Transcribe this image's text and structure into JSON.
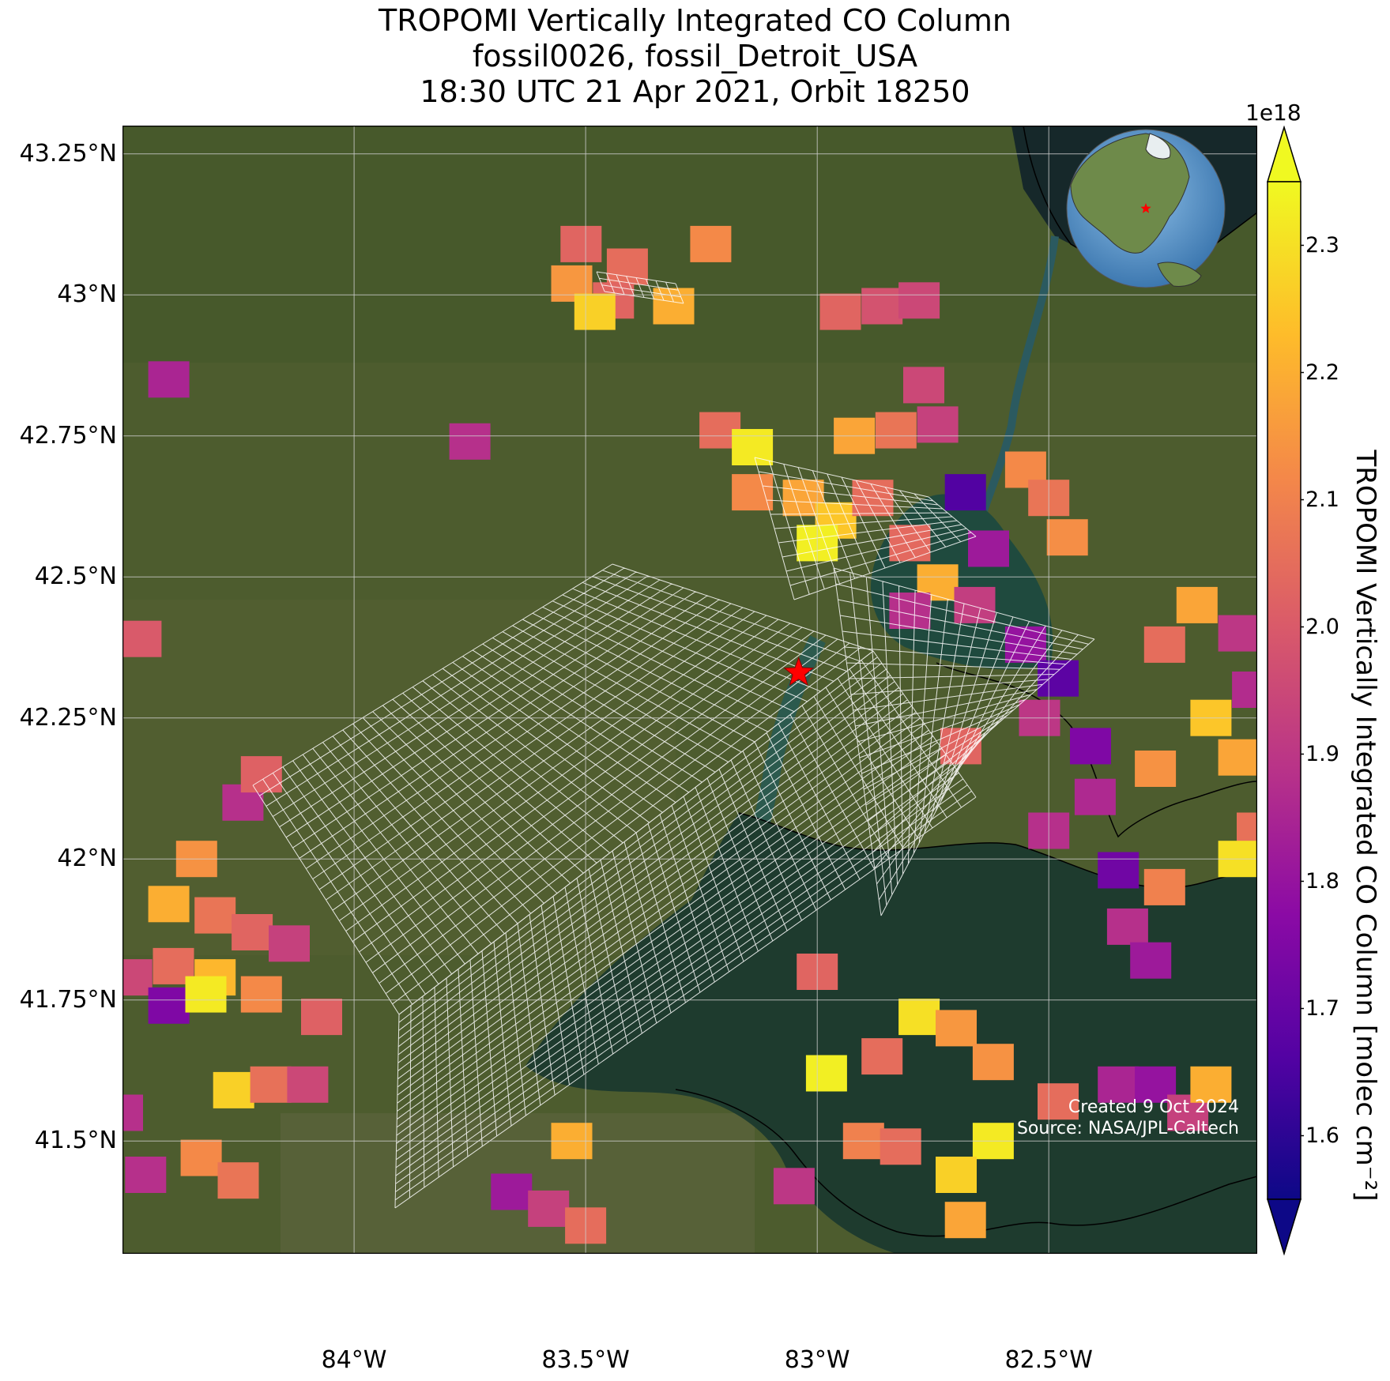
{
  "title": {
    "line1": "TROPOMI Vertically Integrated CO Column",
    "line2": "fossil0026, fossil_Detroit_USA",
    "line3": "18:30 UTC 21 Apr 2021, Orbit 18250"
  },
  "axes": {
    "lon_range": [
      -84.5,
      -82.05
    ],
    "lat_range": [
      41.3,
      43.3
    ],
    "x_ticks": [
      {
        "value": -84.0,
        "label": "84°W"
      },
      {
        "value": -83.5,
        "label": "83.5°W"
      },
      {
        "value": -83.0,
        "label": "83°W"
      },
      {
        "value": -82.5,
        "label": "82.5°W"
      }
    ],
    "y_ticks": [
      {
        "value": 43.25,
        "label": "43.25°N"
      },
      {
        "value": 43.0,
        "label": "43°N"
      },
      {
        "value": 42.75,
        "label": "42.75°N"
      },
      {
        "value": 42.5,
        "label": "42.5°N"
      },
      {
        "value": 42.25,
        "label": "42.25°N"
      },
      {
        "value": 42.0,
        "label": "42°N"
      },
      {
        "value": 41.75,
        "label": "41.75°N"
      },
      {
        "value": 41.5,
        "label": "41.5°N"
      }
    ],
    "grid": true
  },
  "colorbar": {
    "label": "TROPOMI Vertically Integrated CO Column [molec cm⁻²]",
    "exponent_label": "1e18",
    "range": [
      1.55,
      2.35
    ],
    "ticks": [
      "1.6",
      "1.7",
      "1.8",
      "1.9",
      "2.0",
      "2.1",
      "2.2",
      "2.3"
    ],
    "colormap": "plasma",
    "extend": "both"
  },
  "site_marker": {
    "lon": -83.04,
    "lat": 42.33,
    "color": "#ff0000",
    "symbol": "star-icon"
  },
  "inset_globe": {
    "marker_color": "#ff0000"
  },
  "credits": {
    "created": "Created 9 Oct 2024",
    "source": "Source: NASA/JPL-Caltech"
  },
  "colors": {
    "land": "#4a5a2c",
    "water": "#1e3d34",
    "grid": "#d0d0d0",
    "overlay_grid": "#ffffff"
  },
  "chart_data": {
    "type": "heatmap",
    "title": "TROPOMI Vertically Integrated CO Column",
    "xlabel": "",
    "ylabel": "",
    "value_units": "1e18 molec cm-2",
    "cells": [
      {
        "lon": -83.51,
        "lat": 43.09,
        "v": 2.03
      },
      {
        "lon": -83.41,
        "lat": 43.05,
        "v": 2.05
      },
      {
        "lon": -83.23,
        "lat": 43.09,
        "v": 2.12
      },
      {
        "lon": -83.53,
        "lat": 43.02,
        "v": 2.15
      },
      {
        "lon": -83.44,
        "lat": 42.99,
        "v": 2.03
      },
      {
        "lon": -83.31,
        "lat": 42.98,
        "v": 2.2
      },
      {
        "lon": -83.48,
        "lat": 42.97,
        "v": 2.27
      },
      {
        "lon": -82.95,
        "lat": 42.97,
        "v": 2.03
      },
      {
        "lon": -82.86,
        "lat": 42.98,
        "v": 1.98
      },
      {
        "lon": -82.78,
        "lat": 42.99,
        "v": 1.95
      },
      {
        "lon": -84.4,
        "lat": 42.85,
        "v": 1.85
      },
      {
        "lon": -83.75,
        "lat": 42.74,
        "v": 1.88
      },
      {
        "lon": -83.21,
        "lat": 42.76,
        "v": 2.05
      },
      {
        "lon": -83.14,
        "lat": 42.73,
        "v": 2.32
      },
      {
        "lon": -83.14,
        "lat": 42.65,
        "v": 2.12
      },
      {
        "lon": -82.92,
        "lat": 42.75,
        "v": 2.18
      },
      {
        "lon": -82.83,
        "lat": 42.76,
        "v": 2.07
      },
      {
        "lon": -82.74,
        "lat": 42.77,
        "v": 1.93
      },
      {
        "lon": -82.77,
        "lat": 42.84,
        "v": 1.95
      },
      {
        "lon": -83.03,
        "lat": 42.64,
        "v": 2.18
      },
      {
        "lon": -82.96,
        "lat": 42.6,
        "v": 2.25
      },
      {
        "lon": -83.0,
        "lat": 42.56,
        "v": 2.33
      },
      {
        "lon": -82.88,
        "lat": 42.64,
        "v": 2.05
      },
      {
        "lon": -82.68,
        "lat": 42.65,
        "v": 1.66
      },
      {
        "lon": -82.55,
        "lat": 42.69,
        "v": 2.12
      },
      {
        "lon": -82.5,
        "lat": 42.64,
        "v": 2.07
      },
      {
        "lon": -82.46,
        "lat": 42.57,
        "v": 2.13
      },
      {
        "lon": -82.8,
        "lat": 42.56,
        "v": 2.04
      },
      {
        "lon": -82.63,
        "lat": 42.55,
        "v": 1.82
      },
      {
        "lon": -82.74,
        "lat": 42.49,
        "v": 2.2
      },
      {
        "lon": -82.8,
        "lat": 42.44,
        "v": 1.88
      },
      {
        "lon": -82.66,
        "lat": 42.45,
        "v": 1.92
      },
      {
        "lon": -82.55,
        "lat": 42.38,
        "v": 1.8
      },
      {
        "lon": -82.48,
        "lat": 42.32,
        "v": 1.68
      },
      {
        "lon": -82.52,
        "lat": 42.25,
        "v": 1.9
      },
      {
        "lon": -82.41,
        "lat": 42.2,
        "v": 1.75
      },
      {
        "lon": -82.69,
        "lat": 42.2,
        "v": 2.03
      },
      {
        "lon": -82.4,
        "lat": 42.11,
        "v": 1.86
      },
      {
        "lon": -82.5,
        "lat": 42.05,
        "v": 1.88
      },
      {
        "lon": -82.35,
        "lat": 41.98,
        "v": 1.72
      },
      {
        "lon": -82.25,
        "lat": 41.95,
        "v": 2.1
      },
      {
        "lon": -82.33,
        "lat": 41.88,
        "v": 1.88
      },
      {
        "lon": -82.28,
        "lat": 41.82,
        "v": 1.82
      },
      {
        "lon": -82.25,
        "lat": 42.38,
        "v": 2.05
      },
      {
        "lon": -82.18,
        "lat": 42.45,
        "v": 2.18
      },
      {
        "lon": -82.09,
        "lat": 42.4,
        "v": 1.9
      },
      {
        "lon": -82.15,
        "lat": 42.25,
        "v": 2.25
      },
      {
        "lon": -82.06,
        "lat": 42.3,
        "v": 1.87
      },
      {
        "lon": -82.09,
        "lat": 42.18,
        "v": 2.18
      },
      {
        "lon": -82.27,
        "lat": 42.16,
        "v": 2.14
      },
      {
        "lon": -82.05,
        "lat": 42.05,
        "v": 2.06
      },
      {
        "lon": -82.09,
        "lat": 42.0,
        "v": 2.3
      },
      {
        "lon": -84.46,
        "lat": 42.39,
        "v": 2.0
      },
      {
        "lon": -84.24,
        "lat": 42.1,
        "v": 1.88
      },
      {
        "lon": -84.2,
        "lat": 42.15,
        "v": 2.02
      },
      {
        "lon": -84.34,
        "lat": 42.0,
        "v": 2.14
      },
      {
        "lon": -84.4,
        "lat": 41.92,
        "v": 2.2
      },
      {
        "lon": -84.3,
        "lat": 41.9,
        "v": 2.07
      },
      {
        "lon": -84.22,
        "lat": 41.87,
        "v": 2.03
      },
      {
        "lon": -84.14,
        "lat": 41.85,
        "v": 1.93
      },
      {
        "lon": -84.39,
        "lat": 41.81,
        "v": 2.05
      },
      {
        "lon": -84.3,
        "lat": 41.79,
        "v": 2.22
      },
      {
        "lon": -84.48,
        "lat": 41.79,
        "v": 1.95
      },
      {
        "lon": -84.4,
        "lat": 41.74,
        "v": 1.75
      },
      {
        "lon": -84.32,
        "lat": 41.76,
        "v": 2.32
      },
      {
        "lon": -84.2,
        "lat": 41.76,
        "v": 2.12
      },
      {
        "lon": -84.07,
        "lat": 41.72,
        "v": 2.02
      },
      {
        "lon": -84.26,
        "lat": 41.59,
        "v": 2.27
      },
      {
        "lon": -84.18,
        "lat": 41.6,
        "v": 2.06
      },
      {
        "lon": -84.1,
        "lat": 41.6,
        "v": 1.95
      },
      {
        "lon": -84.45,
        "lat": 41.44,
        "v": 1.88
      },
      {
        "lon": -84.33,
        "lat": 41.47,
        "v": 2.12
      },
      {
        "lon": -84.25,
        "lat": 41.43,
        "v": 2.07
      },
      {
        "lon": -84.5,
        "lat": 41.55,
        "v": 1.88
      },
      {
        "lon": -83.0,
        "lat": 41.8,
        "v": 2.03
      },
      {
        "lon": -82.98,
        "lat": 41.62,
        "v": 2.33
      },
      {
        "lon": -82.86,
        "lat": 41.65,
        "v": 2.05
      },
      {
        "lon": -82.78,
        "lat": 41.72,
        "v": 2.3
      },
      {
        "lon": -82.7,
        "lat": 41.7,
        "v": 2.15
      },
      {
        "lon": -82.62,
        "lat": 41.64,
        "v": 2.14
      },
      {
        "lon": -82.62,
        "lat": 41.5,
        "v": 2.32
      },
      {
        "lon": -82.7,
        "lat": 41.44,
        "v": 2.27
      },
      {
        "lon": -82.68,
        "lat": 41.36,
        "v": 2.18
      },
      {
        "lon": -82.9,
        "lat": 41.5,
        "v": 2.1
      },
      {
        "lon": -82.82,
        "lat": 41.49,
        "v": 2.05
      },
      {
        "lon": -82.48,
        "lat": 41.57,
        "v": 2.05
      },
      {
        "lon": -82.35,
        "lat": 41.6,
        "v": 1.85
      },
      {
        "lon": -82.27,
        "lat": 41.6,
        "v": 1.8
      },
      {
        "lon": -82.2,
        "lat": 41.55,
        "v": 1.93
      },
      {
        "lon": -82.15,
        "lat": 41.6,
        "v": 2.2
      },
      {
        "lon": -83.05,
        "lat": 41.42,
        "v": 1.9
      },
      {
        "lon": -83.53,
        "lat": 41.5,
        "v": 2.2
      },
      {
        "lon": -83.66,
        "lat": 41.41,
        "v": 1.82
      },
      {
        "lon": -83.58,
        "lat": 41.38,
        "v": 1.93
      },
      {
        "lon": -83.5,
        "lat": 41.35,
        "v": 2.05
      }
    ]
  }
}
